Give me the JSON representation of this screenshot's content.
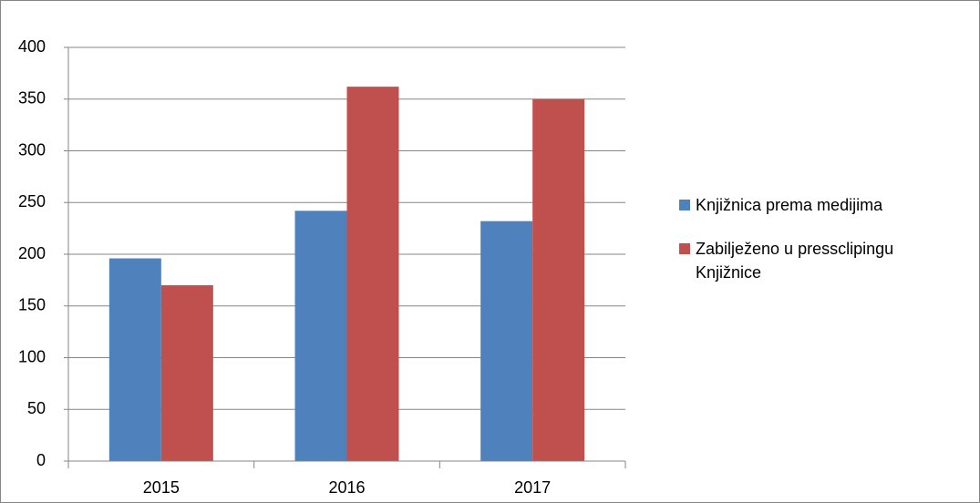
{
  "chart_data": {
    "type": "bar",
    "categories": [
      "2015",
      "2016",
      "2017"
    ],
    "series": [
      {
        "name": "Knjižnica prema medijima",
        "color": "#4f81bd",
        "values": [
          196,
          242,
          232
        ]
      },
      {
        "name": "Zabilježeno u pressclipingu Knjižnice",
        "color": "#c0504d",
        "values": [
          170,
          362,
          350
        ]
      }
    ],
    "ylim": [
      0,
      400
    ],
    "yticks": [
      0,
      50,
      100,
      150,
      200,
      250,
      300,
      350,
      400
    ],
    "grid": true,
    "legend": "right"
  }
}
